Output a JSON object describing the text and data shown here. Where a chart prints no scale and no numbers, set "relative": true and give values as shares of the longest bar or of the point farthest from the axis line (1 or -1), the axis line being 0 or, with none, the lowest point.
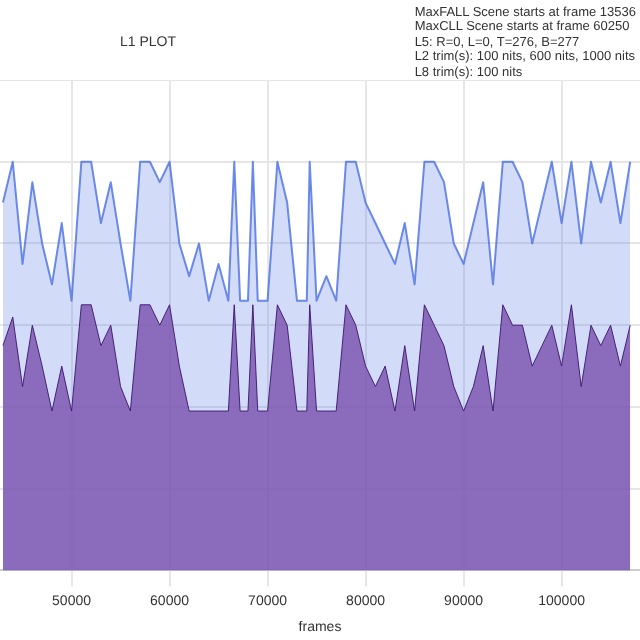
{
  "chart_data": {
    "type": "area",
    "title": "L1 PLOT",
    "xlabel": "frames",
    "relative": true,
    "grid": true,
    "annotations": [
      "MaxFALL Scene starts at frame 13536",
      "MaxCLL Scene starts at frame 60250",
      "L5: R=0, L=0, T=276, B=277",
      "L2 trim(s): 100 nits, 600 nits, 1000 nits",
      "L8 trim(s): 100 nits"
    ],
    "xlim": [
      42700,
      108000
    ],
    "xticks": [
      50000,
      60000,
      70000,
      80000,
      90000,
      100000
    ],
    "x": [
      43000,
      44000,
      45000,
      46000,
      47000,
      48000,
      49000,
      50000,
      51000,
      52000,
      53000,
      54000,
      55000,
      56000,
      57000,
      58000,
      59000,
      60000,
      61000,
      62000,
      63000,
      64000,
      65000,
      66000,
      66600,
      67200,
      68000,
      68500,
      69000,
      70000,
      71000,
      72000,
      73000,
      74000,
      74300,
      75000,
      76000,
      77000,
      78000,
      79000,
      80000,
      81000,
      82000,
      83000,
      84000,
      85000,
      86000,
      87000,
      88000,
      89000,
      90000,
      91000,
      92000,
      93000,
      94000,
      95000,
      96000,
      97000,
      98000,
      99000,
      100000,
      101000,
      102000,
      103000,
      104000,
      105000,
      106000,
      107000
    ],
    "series": [
      {
        "color": "#4a6fe3",
        "values": [
          0.9,
          1.0,
          0.75,
          0.95,
          0.8,
          0.7,
          0.85,
          0.66,
          1.0,
          1.0,
          0.85,
          0.95,
          0.8,
          0.66,
          1.0,
          1.0,
          0.95,
          1.0,
          0.8,
          0.72,
          0.8,
          0.66,
          0.75,
          0.66,
          1.0,
          0.66,
          0.66,
          1.0,
          0.66,
          0.66,
          1.0,
          0.9,
          0.66,
          0.66,
          1.0,
          0.66,
          0.72,
          0.66,
          1.0,
          1.0,
          0.9,
          0.85,
          0.8,
          0.75,
          0.85,
          0.7,
          1.0,
          1.0,
          0.95,
          0.8,
          0.75,
          0.85,
          0.95,
          0.7,
          1.0,
          1.0,
          0.95,
          0.8,
          0.9,
          1.0,
          0.85,
          1.0,
          0.8,
          1.0,
          0.9,
          1.0,
          0.85,
          1.0
        ]
      },
      {
        "color": "#7e57b2",
        "values": [
          0.55,
          0.62,
          0.45,
          0.6,
          0.5,
          0.39,
          0.5,
          0.39,
          0.65,
          0.65,
          0.55,
          0.6,
          0.45,
          0.39,
          0.65,
          0.65,
          0.6,
          0.65,
          0.5,
          0.39,
          0.39,
          0.39,
          0.39,
          0.39,
          0.65,
          0.39,
          0.39,
          0.65,
          0.39,
          0.39,
          0.65,
          0.6,
          0.39,
          0.39,
          0.65,
          0.39,
          0.39,
          0.39,
          0.65,
          0.6,
          0.5,
          0.45,
          0.5,
          0.39,
          0.55,
          0.39,
          0.65,
          0.6,
          0.55,
          0.45,
          0.39,
          0.45,
          0.55,
          0.39,
          0.65,
          0.6,
          0.6,
          0.5,
          0.55,
          0.6,
          0.5,
          0.65,
          0.45,
          0.6,
          0.55,
          0.6,
          0.5,
          0.6
        ]
      }
    ]
  }
}
